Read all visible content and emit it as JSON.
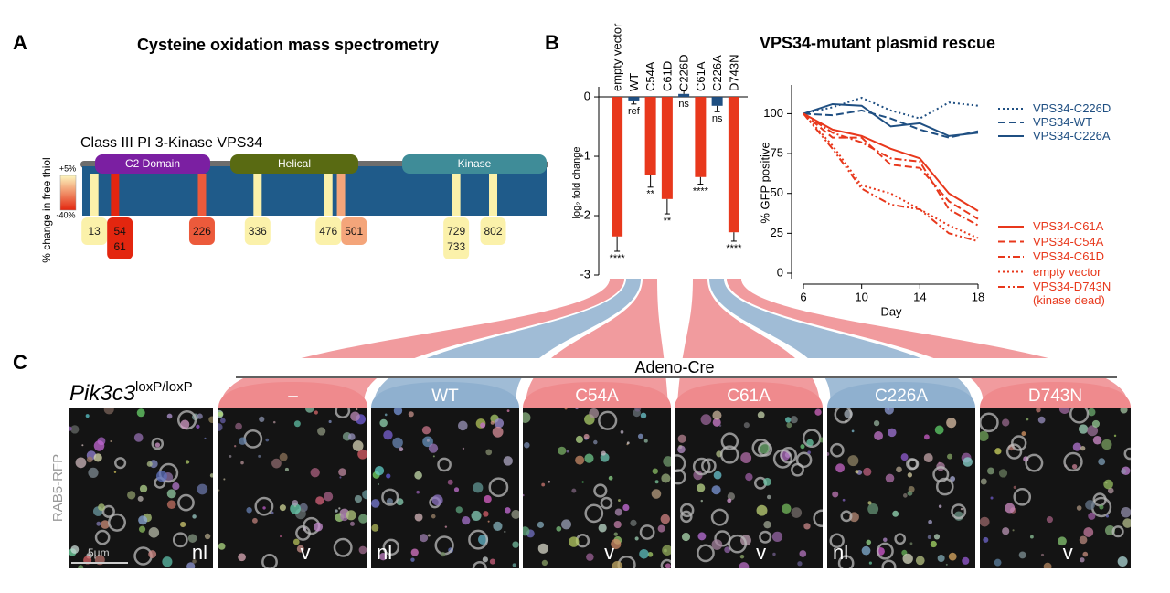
{
  "panel_labels": [
    "A",
    "B",
    "C"
  ],
  "panel_a": {
    "title": "Cysteine oxidation mass spectrometry",
    "protein": "Class III PI 3-Kinase VPS34",
    "legend": {
      "label": "% change in free thiol",
      "top": "+5%",
      "bottom": "-40%",
      "colors": [
        "#fdf7bf",
        "#e3260f"
      ]
    },
    "domains": [
      {
        "name": "C2 Domain",
        "color": "#7b1fa2"
      },
      {
        "name": "Helical",
        "color": "#596a12"
      },
      {
        "name": "Kinase",
        "color": "#3f8c98"
      }
    ],
    "sites": [
      {
        "residues": [
          13
        ],
        "color": "#fbf1aa"
      },
      {
        "residues": [
          54,
          61
        ],
        "color": "#e3260f"
      },
      {
        "residues": [
          226
        ],
        "color": "#ec5a3b"
      },
      {
        "residues": [
          336
        ],
        "color": "#fbf1aa"
      },
      {
        "residues": [
          476
        ],
        "color": "#fbf1aa"
      },
      {
        "residues": [
          501
        ],
        "color": "#f4a57a"
      },
      {
        "residues": [
          729,
          733
        ],
        "color": "#fbf1aa"
      },
      {
        "residues": [
          802
        ],
        "color": "#fbf1aa"
      }
    ]
  },
  "chart_data": [
    {
      "type": "bar",
      "ylabel": "log₂ fold change",
      "categories": [
        "empty vector",
        "WT",
        "C54A",
        "C61D",
        "C226D",
        "C61A",
        "C226A",
        "D743N"
      ],
      "values": [
        -2.35,
        -0.06,
        -1.32,
        -1.72,
        0.05,
        -1.35,
        -0.15,
        -2.28
      ],
      "errors": [
        0.25,
        0.06,
        0.2,
        0.25,
        0.05,
        0.12,
        0.1,
        0.15
      ],
      "annotations": [
        "****",
        "ref",
        "**",
        "**",
        "ns",
        "****",
        "ns",
        "****"
      ],
      "colors": [
        "#e8381c",
        "#1f4f82",
        "#e8381c",
        "#e8381c",
        "#1f4f82",
        "#e8381c",
        "#1f4f82",
        "#e8381c"
      ],
      "ylim": [
        -3,
        0.17
      ],
      "yticks": [
        -3,
        -2,
        -1,
        0
      ]
    },
    {
      "type": "line",
      "title": "VPS34-mutant plasmid rescue",
      "xlabel": "Day",
      "ylabel": "% GFP positive",
      "x": [
        6,
        8,
        10,
        12,
        14,
        16,
        18
      ],
      "xlim": [
        6,
        18
      ],
      "xticks": [
        6,
        10,
        14,
        18
      ],
      "ylim": [
        0,
        118
      ],
      "yticks": [
        0,
        25,
        50,
        75,
        100
      ],
      "series": [
        {
          "name": "VPS34-C226D",
          "color": "#1f4f82",
          "linestyle": "dotted",
          "values": [
            100,
            104,
            110,
            102,
            97,
            107,
            105
          ]
        },
        {
          "name": "VPS34-WT",
          "color": "#1f4f82",
          "linestyle": "dashed",
          "values": [
            100,
            99,
            102,
            97,
            90,
            85,
            89
          ]
        },
        {
          "name": "VPS34-C226A",
          "color": "#1f4f82",
          "linestyle": "solid",
          "values": [
            100,
            106,
            105,
            92,
            94,
            86,
            88
          ]
        },
        {
          "name": "VPS34-C61A",
          "color": "#e8381c",
          "linestyle": "solid",
          "values": [
            100,
            90,
            86,
            78,
            72,
            50,
            39
          ]
        },
        {
          "name": "VPS34-C54A",
          "color": "#e8381c",
          "linestyle": "dashed",
          "values": [
            100,
            85,
            85,
            68,
            66,
            45,
            34
          ]
        },
        {
          "name": "VPS34-C61D",
          "color": "#e8381c",
          "linestyle": "dashdot",
          "values": [
            100,
            88,
            82,
            72,
            70,
            40,
            30
          ]
        },
        {
          "name": "empty vector",
          "color": "#e8381c",
          "linestyle": "dotted",
          "values": [
            100,
            80,
            55,
            50,
            40,
            30,
            22
          ]
        },
        {
          "name": "VPS34-D743N (kinase dead)",
          "color": "#e8381c",
          "linestyle": "dashdotdot",
          "values": [
            100,
            78,
            53,
            43,
            40,
            25,
            20
          ]
        }
      ]
    }
  ],
  "panel_c": {
    "genotype": "Pik3c3",
    "genotype_sup": "loxP/loxP",
    "treatment": "Adeno-Cre",
    "stain": "RAB5-RFP",
    "scale_bar": "5μm",
    "control": {
      "marker": "nl"
    },
    "panels": [
      {
        "label": "–",
        "color": "#ef8a8d",
        "marker": "v"
      },
      {
        "label": "WT",
        "color": "#8fb0cf",
        "marker": "nl"
      },
      {
        "label": "C54A",
        "color": "#ef8a8d",
        "marker": "v"
      },
      {
        "label": "C61A",
        "color": "#ef8a8d",
        "marker": "v"
      },
      {
        "label": "C226A",
        "color": "#8fb0cf",
        "marker": "nl"
      },
      {
        "label": "D743N",
        "color": "#ef8a8d",
        "marker": "v"
      }
    ]
  }
}
